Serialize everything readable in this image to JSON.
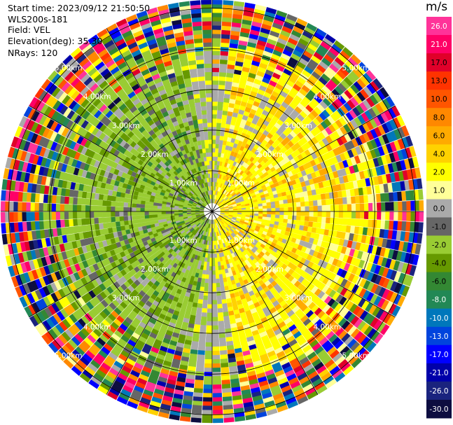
{
  "header": {
    "start_time": "Start time: 2023/09/12 21:50:50",
    "instrument": "WLS200s-181",
    "field": "Field: VEL",
    "elevation": "Elevation(deg): 35.30",
    "nrays": "NRays: 120"
  },
  "chart_data": {
    "type": "heatmap",
    "projection": "polar PPI",
    "field": "VEL",
    "n_rays": 120,
    "range_rings_km": [
      1.0,
      2.0,
      3.0,
      4.0,
      5.0
    ],
    "ring_labels": [
      "1.00km",
      "2.00km",
      "3.00km",
      "4.00km",
      "5.00km"
    ],
    "max_range_km": 5.2,
    "colorbar": {
      "unit": "m/s",
      "ticks": [
        "26.0",
        "21.0",
        "17.0",
        "13.0",
        "10.0",
        "8.0",
        "6.0",
        "4.0",
        "2.0",
        "1.0",
        "0.0",
        "-1.0",
        "-2.0",
        "-4.0",
        "-6.0",
        "-8.0",
        "-10.0",
        "-13.0",
        "-17.0",
        "-21.0",
        "-26.0",
        "-30.0"
      ],
      "colors": [
        "#ff3399",
        "#ff0066",
        "#e0002a",
        "#ff3300",
        "#ff5500",
        "#ff8800",
        "#ffaa00",
        "#ffd200",
        "#ffff00",
        "#ffff99",
        "#aaaaaa",
        "#666666",
        "#99cc33",
        "#669900",
        "#338833",
        "#228855",
        "#0077bb",
        "#0044dd",
        "#0000ff",
        "#0000aa",
        "#1a237e",
        "#0d0d40"
      ]
    },
    "grid": true
  }
}
